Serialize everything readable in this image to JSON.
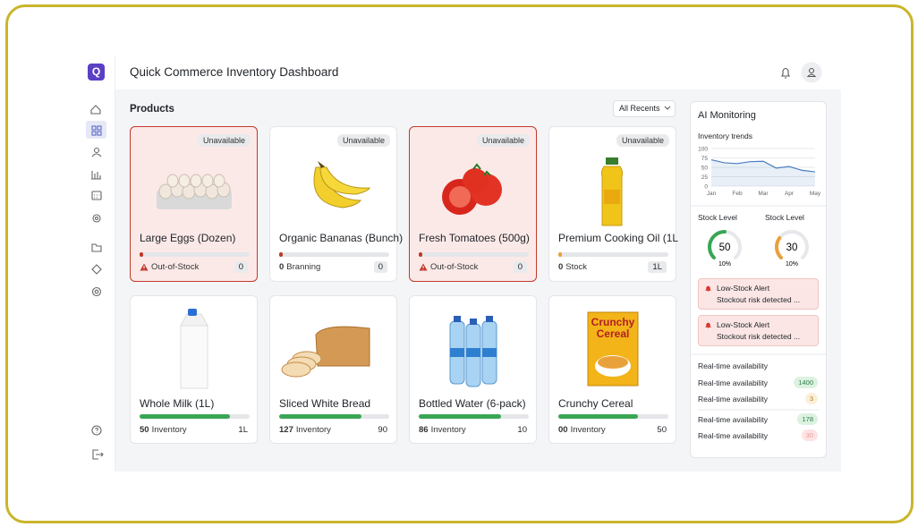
{
  "app": {
    "logo": "Q",
    "title": "Quick Commerce Inventory Dashboard"
  },
  "products": {
    "heading": "Products",
    "filter": "All Recents",
    "items": [
      {
        "name": "Large Eggs (Dozen)",
        "badge": "Unavailable",
        "status": "Out-of-Stock",
        "count": "0",
        "level": 3,
        "bar_color": "#c0392b",
        "highlight": true,
        "warn": true,
        "boxed": true
      },
      {
        "name": "Organic Bananas (Bunch)",
        "badge": "Unavailable",
        "qty": "0",
        "status": "Branning",
        "count": "0",
        "level": 3,
        "bar_color": "#c0392b",
        "highlight": false,
        "warn": false,
        "boxed": true
      },
      {
        "name": "Fresh Tomatoes (500g)",
        "badge": "Unavailable",
        "status": "Out-of-Stock",
        "count": "0",
        "level": 3,
        "bar_color": "#c0392b",
        "highlight": true,
        "warn": true,
        "boxed": true
      },
      {
        "name": "Premium Cooking Oil (1L",
        "badge": "Unavailable",
        "qty": "0",
        "status": "Stock",
        "count": "1L",
        "level": 3,
        "bar_color": "#e8a13a",
        "highlight": false,
        "warn": false,
        "boxed": true
      },
      {
        "name": "Whole Milk (1L)",
        "qty": "50",
        "status": "Inventory",
        "count": "1L",
        "level": 82,
        "bar_color": "#3aa655",
        "highlight": false,
        "warn": false,
        "boxed": false
      },
      {
        "name": "Sliced White Bread",
        "qty": "127",
        "status": "Inventory",
        "count": "90",
        "level": 75,
        "bar_color": "#3aa655",
        "highlight": false,
        "warn": false,
        "boxed": false
      },
      {
        "name": "Bottled Water (6-pack)",
        "qty": "86",
        "status": "Inventory",
        "count": "10",
        "level": 75,
        "bar_color": "#3aa655",
        "highlight": false,
        "warn": false,
        "boxed": false
      },
      {
        "name": "Crunchy Cereal",
        "qty": "00",
        "status": "Inventory",
        "count": "50",
        "level": 72,
        "bar_color": "#3aa655",
        "highlight": false,
        "warn": false,
        "boxed": false,
        "image_text": [
          "Crunchy",
          "Cereal"
        ]
      }
    ]
  },
  "ai_monitoring": {
    "title": "AI Monitoring",
    "trend": {
      "type": "line",
      "title": "Inventory trends",
      "categories": [
        "Jan",
        null,
        "Feb",
        null,
        "Mar",
        null,
        "Apr",
        null,
        "May"
      ],
      "values": [
        70,
        62,
        60,
        65,
        66,
        48,
        52,
        42,
        38
      ],
      "ylim": [
        0,
        100
      ],
      "yticks": [
        0,
        25,
        50,
        75,
        100
      ],
      "color": "#4a7fc1",
      "grid": true
    },
    "gauges": [
      {
        "label": "Stock Level",
        "value": 50,
        "sub": "10%",
        "color": "#3aa655"
      },
      {
        "label": "Stock Level",
        "value": 30,
        "sub": "10%",
        "color": "#e8a13a"
      }
    ],
    "alerts": [
      {
        "title": "Low-Stock Alert",
        "text": "Stockout risk detected ..."
      },
      {
        "title": "Low-Stock Alert",
        "text": "Stockout risk detected ..."
      }
    ],
    "availability": {
      "title": "Real-time availability",
      "rows": [
        {
          "label": "Real-time availability",
          "value": 1400,
          "tone": "green"
        },
        {
          "label": "Real-time availability",
          "value": 3,
          "tone": "orange"
        },
        {
          "label": "Real-time availability",
          "value": 178,
          "tone": "green"
        },
        {
          "label": "Real-time availability",
          "value": 30,
          "tone": "red"
        }
      ]
    }
  }
}
